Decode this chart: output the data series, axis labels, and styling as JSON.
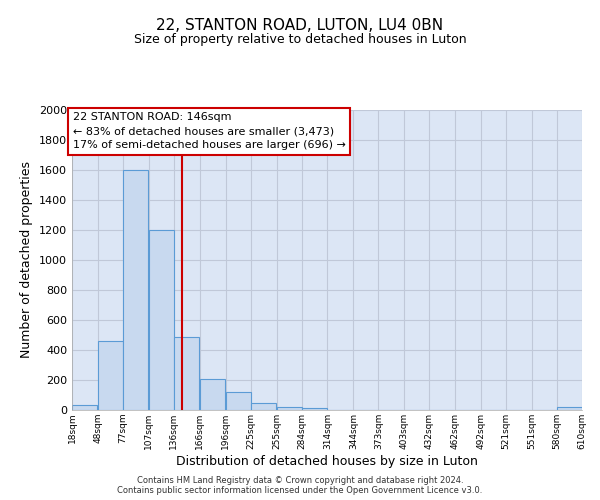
{
  "title": "22, STANTON ROAD, LUTON, LU4 0BN",
  "subtitle": "Size of property relative to detached houses in Luton",
  "xlabel": "Distribution of detached houses by size in Luton",
  "ylabel": "Number of detached properties",
  "bar_left_edges": [
    18,
    48,
    77,
    107,
    136,
    166,
    196,
    225,
    255,
    284,
    314,
    344,
    373,
    403,
    432,
    462,
    492,
    521,
    551,
    580
  ],
  "bar_heights": [
    35,
    460,
    1600,
    1200,
    490,
    210,
    120,
    45,
    20,
    15,
    0,
    0,
    0,
    0,
    0,
    0,
    0,
    0,
    0,
    20
  ],
  "bin_width": 29,
  "bar_color": "#c8d9ef",
  "bar_edge_color": "#5b9bd5",
  "red_line_x": 146,
  "ylim": [
    0,
    2000
  ],
  "yticks": [
    0,
    200,
    400,
    600,
    800,
    1000,
    1200,
    1400,
    1600,
    1800,
    2000
  ],
  "xtick_labels": [
    "18sqm",
    "48sqm",
    "77sqm",
    "107sqm",
    "136sqm",
    "166sqm",
    "196sqm",
    "225sqm",
    "255sqm",
    "284sqm",
    "314sqm",
    "344sqm",
    "373sqm",
    "403sqm",
    "432sqm",
    "462sqm",
    "492sqm",
    "521sqm",
    "551sqm",
    "580sqm",
    "610sqm"
  ],
  "annotation_title": "22 STANTON ROAD: 146sqm",
  "annotation_line1": "← 83% of detached houses are smaller (3,473)",
  "annotation_line2": "17% of semi-detached houses are larger (696) →",
  "annotation_box_edge_color": "#cc0000",
  "footer1": "Contains HM Land Registry data © Crown copyright and database right 2024.",
  "footer2": "Contains public sector information licensed under the Open Government Licence v3.0.",
  "plot_bg_color": "#dce6f5",
  "fig_bg_color": "#ffffff",
  "grid_color": "#c0c8d8",
  "title_fontsize": 11,
  "subtitle_fontsize": 9
}
